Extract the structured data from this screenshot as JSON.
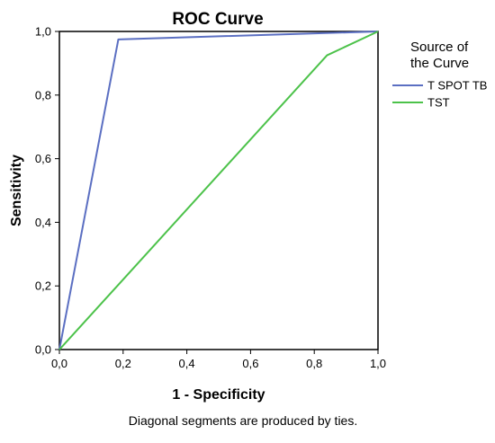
{
  "chart_data": {
    "type": "line",
    "title": "ROC Curve",
    "xlabel": "1 - Specificity",
    "ylabel": "Sensitivity",
    "xlim": [
      0,
      1
    ],
    "ylim": [
      0,
      1
    ],
    "xticks": [
      "0,0",
      "0,2",
      "0,4",
      "0,6",
      "0,8",
      "1,0"
    ],
    "yticks": [
      "0,0",
      "0,2",
      "0,4",
      "0,6",
      "0,8",
      "1,0"
    ],
    "grid": false,
    "legend": {
      "title_lines": [
        "Source of",
        "the Curve"
      ],
      "placement": "right"
    },
    "series": [
      {
        "name": "T SPOT TB",
        "color": "#5b6fc2",
        "x": [
          0.0,
          0.185,
          1.0
        ],
        "y": [
          0.0,
          0.975,
          1.0
        ]
      },
      {
        "name": "TST",
        "color": "#4cc24a",
        "x": [
          0.0,
          0.84,
          1.0
        ],
        "y": [
          0.0,
          0.925,
          1.0
        ]
      }
    ],
    "footnote": "Diagonal segments are produced by ties."
  }
}
